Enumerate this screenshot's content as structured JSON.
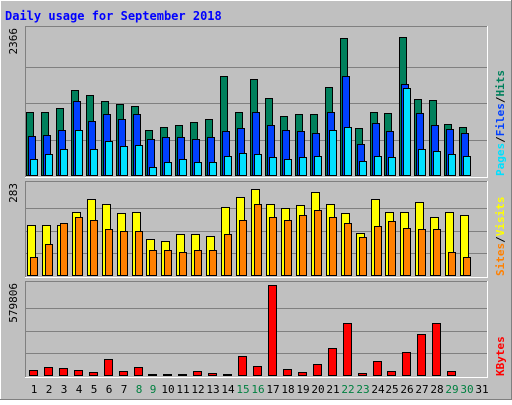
{
  "title": "Daily usage for September 2018",
  "colors": {
    "background": "#c0c0c0",
    "frame_dark": "#808080",
    "frame_light": "#ffffff",
    "grid": "#808080",
    "title_text": "#0000ff",
    "hits": "#00805c",
    "files": "#0040ff",
    "pages": "#00e0ff",
    "visits": "#ffff00",
    "sites": "#ff8000",
    "kbytes": "#ff0000",
    "weekday_label": "#000000",
    "weekend_label": "#008040"
  },
  "chart_data": [
    {
      "type": "bar",
      "name": "hits-files-pages",
      "ymax_label": "2366",
      "ylim": [
        0,
        2366
      ],
      "right_labels": [
        "Pages",
        "Files",
        "Hits"
      ],
      "series": [
        {
          "name": "Hits",
          "values": [
            1040,
            1035,
            1100,
            1400,
            1320,
            1210,
            1160,
            1140,
            745,
            800,
            830,
            880,
            920,
            1620,
            1030,
            1570,
            1260,
            970,
            1010,
            1010,
            1450,
            2230,
            780,
            1040,
            1020,
            2250,
            1240,
            1230,
            850,
            800
          ]
        },
        {
          "name": "Files",
          "values": [
            650,
            670,
            750,
            1210,
            890,
            1000,
            930,
            1000,
            600,
            630,
            640,
            600,
            640,
            730,
            770,
            1030,
            830,
            750,
            730,
            700,
            1040,
            1620,
            520,
            860,
            730,
            1490,
            1020,
            830,
            760,
            690
          ]
        },
        {
          "name": "Pages",
          "values": [
            270,
            350,
            440,
            740,
            440,
            570,
            490,
            510,
            150,
            220,
            280,
            230,
            230,
            330,
            370,
            360,
            300,
            280,
            310,
            320,
            740,
            800,
            250,
            330,
            300,
            1420,
            430,
            410,
            360,
            320
          ]
        }
      ]
    },
    {
      "type": "bar",
      "name": "visits-sites",
      "ymax_label": "283",
      "ylim": [
        0,
        283
      ],
      "right_labels": [
        "Sites",
        "Visits"
      ],
      "series": [
        {
          "name": "Visits",
          "values": [
            160,
            160,
            160,
            200,
            240,
            225,
            195,
            200,
            115,
            110,
            130,
            130,
            125,
            215,
            245,
            270,
            225,
            210,
            220,
            260,
            225,
            195,
            135,
            240,
            200,
            200,
            230,
            185,
            200,
            190
          ]
        },
        {
          "name": "Sites",
          "values": [
            60,
            100,
            165,
            185,
            175,
            145,
            140,
            140,
            80,
            80,
            75,
            80,
            80,
            130,
            175,
            225,
            185,
            175,
            190,
            205,
            185,
            165,
            120,
            155,
            170,
            150,
            145,
            145,
            75,
            60
          ]
        }
      ]
    },
    {
      "type": "bar",
      "name": "kbytes",
      "ymax_label": "579806",
      "ylim": [
        0,
        579806
      ],
      "right_labels": [
        "KBytes"
      ],
      "series": [
        {
          "name": "KBytes",
          "values": [
            40000,
            55000,
            50000,
            40000,
            25000,
            110000,
            30000,
            55000,
            10000,
            10000,
            15000,
            35000,
            20000,
            10000,
            130000,
            65000,
            579806,
            45000,
            25000,
            75000,
            180000,
            335000,
            20000,
            95000,
            30000,
            150000,
            270000,
            340000,
            35000,
            0
          ]
        }
      ]
    }
  ],
  "days": [
    {
      "label": "1",
      "weekend": false
    },
    {
      "label": "2",
      "weekend": false
    },
    {
      "label": "3",
      "weekend": false
    },
    {
      "label": "4",
      "weekend": false
    },
    {
      "label": "5",
      "weekend": false
    },
    {
      "label": "6",
      "weekend": false
    },
    {
      "label": "7",
      "weekend": false
    },
    {
      "label": "8",
      "weekend": true
    },
    {
      "label": "9",
      "weekend": true
    },
    {
      "label": "10",
      "weekend": false
    },
    {
      "label": "11",
      "weekend": false
    },
    {
      "label": "12",
      "weekend": false
    },
    {
      "label": "13",
      "weekend": false
    },
    {
      "label": "14",
      "weekend": false
    },
    {
      "label": "15",
      "weekend": true
    },
    {
      "label": "16",
      "weekend": true
    },
    {
      "label": "17",
      "weekend": false
    },
    {
      "label": "18",
      "weekend": false
    },
    {
      "label": "19",
      "weekend": false
    },
    {
      "label": "20",
      "weekend": false
    },
    {
      "label": "21",
      "weekend": false
    },
    {
      "label": "22",
      "weekend": true
    },
    {
      "label": "23",
      "weekend": true
    },
    {
      "label": "24",
      "weekend": false
    },
    {
      "label": "25",
      "weekend": false
    },
    {
      "label": "26",
      "weekend": false
    },
    {
      "label": "27",
      "weekend": false
    },
    {
      "label": "28",
      "weekend": false
    },
    {
      "label": "29",
      "weekend": true
    },
    {
      "label": "30",
      "weekend": true
    },
    {
      "label": "31",
      "weekend": false
    }
  ]
}
